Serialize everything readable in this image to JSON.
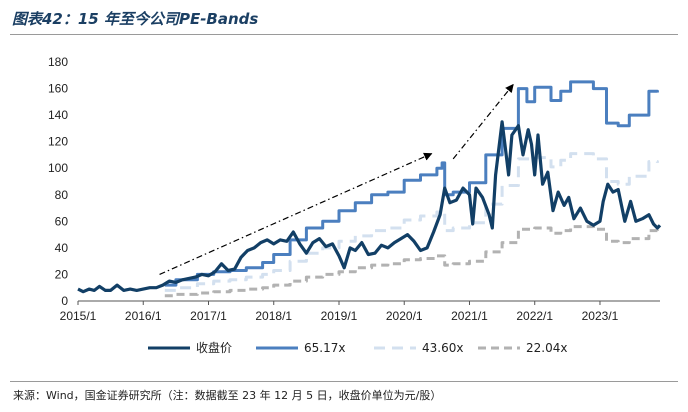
{
  "figure": {
    "title": "图表42：15 年至今公司PE-Bands",
    "source": "来源：Wind，国金证券研究所（注：数据截至 23 年 12 月 5 日，收盘价单位为元/股）"
  },
  "colors": {
    "price": "#123f66",
    "band_65": "#4b7fbf",
    "band_43": "#d3e0ef",
    "band_22": "#b2b2b2",
    "arrow": "#000000"
  },
  "chart_data": {
    "type": "line",
    "title": "15 年至今公司PE-Bands",
    "xlabel": "",
    "ylabel": "",
    "xlim": [
      2015.0,
      2023.92
    ],
    "ylim": [
      0,
      180
    ],
    "yticks": [
      "0",
      "20",
      "40",
      "60",
      "80",
      "100",
      "120",
      "140",
      "160",
      "180"
    ],
    "xticks": [
      {
        "x": 2015.0,
        "label": "2015/1"
      },
      {
        "x": 2016.0,
        "label": "2016/1"
      },
      {
        "x": 2017.0,
        "label": "2017/1"
      },
      {
        "x": 2018.0,
        "label": "2018/1"
      },
      {
        "x": 2019.0,
        "label": "2019/1"
      },
      {
        "x": 2020.0,
        "label": "2020/1"
      },
      {
        "x": 2021.0,
        "label": "2021/1"
      },
      {
        "x": 2022.0,
        "label": "2022/1"
      },
      {
        "x": 2023.0,
        "label": "2023/1"
      }
    ],
    "legend": [
      "收盘价",
      "65.17x",
      "43.60x",
      "22.04x"
    ],
    "legend_position": "bottom",
    "series": [
      {
        "name": "收盘价",
        "style": "solid-thick",
        "points": [
          [
            2015.0,
            9
          ],
          [
            2015.08,
            7
          ],
          [
            2015.17,
            9
          ],
          [
            2015.25,
            8
          ],
          [
            2015.33,
            11
          ],
          [
            2015.42,
            8
          ],
          [
            2015.5,
            8
          ],
          [
            2015.6,
            12
          ],
          [
            2015.7,
            8
          ],
          [
            2015.8,
            9
          ],
          [
            2015.9,
            8
          ],
          [
            2016.0,
            9
          ],
          [
            2016.1,
            10
          ],
          [
            2016.2,
            10
          ],
          [
            2016.3,
            12
          ],
          [
            2016.4,
            15
          ],
          [
            2016.5,
            14
          ],
          [
            2016.6,
            16
          ],
          [
            2016.7,
            17
          ],
          [
            2016.8,
            18
          ],
          [
            2016.9,
            20
          ],
          [
            2017.0,
            19
          ],
          [
            2017.1,
            22
          ],
          [
            2017.2,
            28
          ],
          [
            2017.3,
            23
          ],
          [
            2017.4,
            24
          ],
          [
            2017.5,
            33
          ],
          [
            2017.6,
            38
          ],
          [
            2017.7,
            40
          ],
          [
            2017.8,
            44
          ],
          [
            2017.9,
            46
          ],
          [
            2018.0,
            43
          ],
          [
            2018.1,
            46
          ],
          [
            2018.2,
            45
          ],
          [
            2018.3,
            52
          ],
          [
            2018.4,
            43
          ],
          [
            2018.5,
            36
          ],
          [
            2018.6,
            44
          ],
          [
            2018.7,
            47
          ],
          [
            2018.8,
            41
          ],
          [
            2018.9,
            43
          ],
          [
            2019.0,
            34
          ],
          [
            2019.08,
            25
          ],
          [
            2019.17,
            40
          ],
          [
            2019.25,
            38
          ],
          [
            2019.35,
            44
          ],
          [
            2019.45,
            35
          ],
          [
            2019.55,
            36
          ],
          [
            2019.65,
            42
          ],
          [
            2019.75,
            40
          ],
          [
            2019.85,
            44
          ],
          [
            2019.95,
            47
          ],
          [
            2020.05,
            50
          ],
          [
            2020.15,
            45
          ],
          [
            2020.25,
            38
          ],
          [
            2020.35,
            40
          ],
          [
            2020.45,
            52
          ],
          [
            2020.55,
            65
          ],
          [
            2020.62,
            85
          ],
          [
            2020.7,
            74
          ],
          [
            2020.8,
            76
          ],
          [
            2020.9,
            85
          ],
          [
            2021.0,
            80
          ],
          [
            2021.05,
            58
          ],
          [
            2021.1,
            85
          ],
          [
            2021.2,
            78
          ],
          [
            2021.3,
            65
          ],
          [
            2021.35,
            55
          ],
          [
            2021.4,
            95
          ],
          [
            2021.5,
            135
          ],
          [
            2021.55,
            115
          ],
          [
            2021.6,
            95
          ],
          [
            2021.65,
            125
          ],
          [
            2021.75,
            132
          ],
          [
            2021.82,
            110
          ],
          [
            2021.9,
            129
          ],
          [
            2021.95,
            118
          ],
          [
            2022.0,
            95
          ],
          [
            2022.05,
            125
          ],
          [
            2022.12,
            88
          ],
          [
            2022.2,
            97
          ],
          [
            2022.28,
            68
          ],
          [
            2022.36,
            82
          ],
          [
            2022.45,
            72
          ],
          [
            2022.52,
            78
          ],
          [
            2022.6,
            62
          ],
          [
            2022.7,
            70
          ],
          [
            2022.8,
            60
          ],
          [
            2022.9,
            57
          ],
          [
            2023.0,
            60
          ],
          [
            2023.05,
            75
          ],
          [
            2023.12,
            88
          ],
          [
            2023.2,
            82
          ],
          [
            2023.28,
            84
          ],
          [
            2023.38,
            60
          ],
          [
            2023.47,
            75
          ],
          [
            2023.55,
            60
          ],
          [
            2023.65,
            62
          ],
          [
            2023.75,
            65
          ],
          [
            2023.82,
            58
          ],
          [
            2023.88,
            55
          ],
          [
            2023.92,
            57
          ]
        ]
      },
      {
        "name": "65.17x",
        "style": "solid-step",
        "points": [
          [
            2016.33,
            12
          ],
          [
            2016.5,
            16
          ],
          [
            2016.83,
            20
          ],
          [
            2017.08,
            22
          ],
          [
            2017.33,
            23
          ],
          [
            2017.58,
            25
          ],
          [
            2017.83,
            29
          ],
          [
            2018.0,
            35
          ],
          [
            2018.25,
            46
          ],
          [
            2018.5,
            55
          ],
          [
            2018.75,
            60
          ],
          [
            2019.0,
            68
          ],
          [
            2019.25,
            74
          ],
          [
            2019.5,
            80
          ],
          [
            2019.75,
            82
          ],
          [
            2020.0,
            91
          ],
          [
            2020.25,
            95
          ],
          [
            2020.5,
            100
          ],
          [
            2020.58,
            104
          ],
          [
            2020.62,
            80
          ],
          [
            2020.75,
            82
          ],
          [
            2021.0,
            89
          ],
          [
            2021.25,
            110
          ],
          [
            2021.5,
            130
          ],
          [
            2021.75,
            160
          ],
          [
            2021.88,
            150
          ],
          [
            2022.0,
            161
          ],
          [
            2022.25,
            151
          ],
          [
            2022.4,
            158
          ],
          [
            2022.55,
            165
          ],
          [
            2022.9,
            160
          ],
          [
            2023.1,
            134
          ],
          [
            2023.28,
            132
          ],
          [
            2023.45,
            140
          ],
          [
            2023.75,
            158
          ],
          [
            2023.88,
            157
          ]
        ]
      },
      {
        "name": "43.60x",
        "style": "dashed",
        "points": [
          [
            2016.33,
            8
          ],
          [
            2016.5,
            10
          ],
          [
            2016.83,
            13
          ],
          [
            2017.08,
            15
          ],
          [
            2017.33,
            16
          ],
          [
            2017.58,
            18
          ],
          [
            2017.83,
            20
          ],
          [
            2018.0,
            23
          ],
          [
            2018.25,
            30
          ],
          [
            2018.5,
            36
          ],
          [
            2018.75,
            40
          ],
          [
            2019.0,
            45
          ],
          [
            2019.25,
            49
          ],
          [
            2019.5,
            53
          ],
          [
            2019.75,
            55
          ],
          [
            2020.0,
            61
          ],
          [
            2020.25,
            64
          ],
          [
            2020.5,
            67
          ],
          [
            2020.62,
            53
          ],
          [
            2020.75,
            55
          ],
          [
            2021.0,
            59
          ],
          [
            2021.25,
            73
          ],
          [
            2021.5,
            87
          ],
          [
            2021.75,
            107
          ],
          [
            2022.0,
            108
          ],
          [
            2022.25,
            101
          ],
          [
            2022.4,
            106
          ],
          [
            2022.55,
            111
          ],
          [
            2022.9,
            107
          ],
          [
            2023.1,
            90
          ],
          [
            2023.28,
            88
          ],
          [
            2023.45,
            94
          ],
          [
            2023.75,
            105
          ],
          [
            2023.88,
            104
          ]
        ]
      },
      {
        "name": "22.04x",
        "style": "dashed",
        "points": [
          [
            2016.33,
            4
          ],
          [
            2016.5,
            5
          ],
          [
            2016.83,
            6
          ],
          [
            2017.08,
            7
          ],
          [
            2017.33,
            8
          ],
          [
            2017.58,
            9
          ],
          [
            2017.83,
            10
          ],
          [
            2018.0,
            12
          ],
          [
            2018.25,
            15
          ],
          [
            2018.5,
            18
          ],
          [
            2018.75,
            20
          ],
          [
            2019.0,
            22
          ],
          [
            2019.25,
            25
          ],
          [
            2019.5,
            27
          ],
          [
            2019.75,
            28
          ],
          [
            2020.0,
            31
          ],
          [
            2020.25,
            32
          ],
          [
            2020.5,
            34
          ],
          [
            2020.62,
            27
          ],
          [
            2020.75,
            28
          ],
          [
            2021.0,
            30
          ],
          [
            2021.25,
            37
          ],
          [
            2021.5,
            44
          ],
          [
            2021.75,
            54
          ],
          [
            2022.0,
            55
          ],
          [
            2022.25,
            51
          ],
          [
            2022.4,
            53
          ],
          [
            2022.55,
            56
          ],
          [
            2022.9,
            54
          ],
          [
            2023.1,
            45
          ],
          [
            2023.28,
            44
          ],
          [
            2023.45,
            47
          ],
          [
            2023.75,
            53
          ],
          [
            2023.88,
            52
          ]
        ]
      }
    ],
    "annotations": [
      {
        "type": "arrow",
        "style": "dash-dot",
        "from": [
          2016.25,
          20
        ],
        "to": [
          2020.42,
          111
        ]
      },
      {
        "type": "arrow",
        "style": "dash-dot",
        "from": [
          2020.75,
          107
        ],
        "to": [
          2021.67,
          163
        ]
      }
    ]
  }
}
